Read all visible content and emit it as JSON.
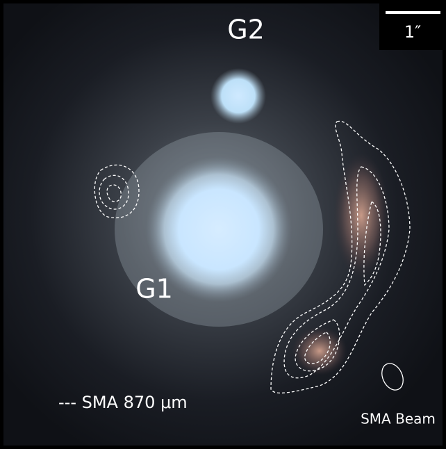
{
  "labels": {
    "g2": "G2",
    "g1": "G1"
  },
  "scale_bar": "1″",
  "legend": "--- SMA 870 μm",
  "beam": "SMA Beam"
}
